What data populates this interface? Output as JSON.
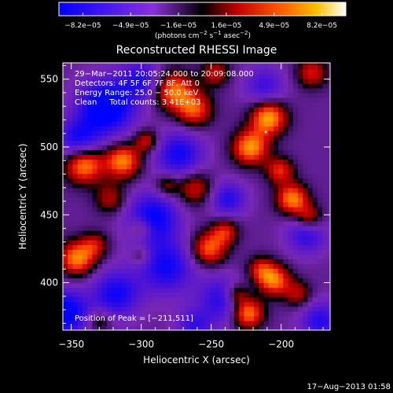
{
  "chart_data": {
    "type": "heatmap",
    "title": "Reconstructed RHESSI Image",
    "xlabel": "Heliocentric X (arcsec)",
    "ylabel": "Heliocentric Y (arcsec)",
    "xlim": [
      -356,
      -165
    ],
    "ylim": [
      365,
      562
    ],
    "xticks": [
      -350,
      -300,
      -250,
      -200
    ],
    "xtick_labels": [
      "−350",
      "−300",
      "−250",
      "−200"
    ],
    "yticks": [
      400,
      450,
      500,
      550
    ],
    "ytick_labels": [
      "400",
      "450",
      "500",
      "550"
    ],
    "colorbar": {
      "min": -8.2e-05,
      "max": 8.2e-05,
      "tick_labels": [
        "−8.2e−05",
        "−4.9e−05",
        "−1.6e−05",
        "1.6e−05",
        "4.9e−05",
        "8.2e−05"
      ],
      "unit_main": "(photons cm",
      "unit_exp1": "−2",
      "unit_mid": " s",
      "unit_exp2": "−1",
      "unit_end": " asec",
      "unit_exp3": "−2",
      "unit_close": ")"
    },
    "annotations": {
      "time": "29−Mar−2011 20:05:24.000 to 20:09:08.000",
      "detectors": "Detectors: 4F 5F 6F 7F 8F, Att 0",
      "energy": "Energy Range: 25.0 − 50.0 keV",
      "clean": "Clean     Total counts: 3.41E+03",
      "peak_label": "Position of Peak = [−211,511]"
    },
    "peak": {
      "x": -211,
      "y": 511
    },
    "blobs": [
      {
        "x": -325,
        "y": 530,
        "r": 14,
        "v": -1.0
      },
      {
        "x": -300,
        "y": 550,
        "r": 10,
        "v": -0.6
      },
      {
        "x": -345,
        "y": 505,
        "r": 11,
        "v": -0.7
      },
      {
        "x": -273,
        "y": 495,
        "r": 12,
        "v": -0.7
      },
      {
        "x": -238,
        "y": 462,
        "r": 9,
        "v": -0.6
      },
      {
        "x": -292,
        "y": 448,
        "r": 13,
        "v": -0.8
      },
      {
        "x": -282,
        "y": 412,
        "r": 14,
        "v": -0.7
      },
      {
        "x": -318,
        "y": 392,
        "r": 12,
        "v": -0.7
      },
      {
        "x": -242,
        "y": 388,
        "r": 12,
        "v": -0.6
      },
      {
        "x": -182,
        "y": 436,
        "r": 10,
        "v": -0.6
      },
      {
        "x": -355,
        "y": 378,
        "r": 12,
        "v": -0.9
      },
      {
        "x": -212,
        "y": 545,
        "r": 10,
        "v": -0.5
      },
      {
        "x": -172,
        "y": 372,
        "r": 10,
        "v": -0.6
      },
      {
        "x": -262,
        "y": 368,
        "r": 9,
        "v": -0.5
      },
      {
        "x": -209,
        "y": 522,
        "r": 9,
        "v": 0.95
      },
      {
        "x": -222,
        "y": 500,
        "r": 9,
        "v": 0.9
      },
      {
        "x": -201,
        "y": 483,
        "r": 7,
        "v": 0.6
      },
      {
        "x": -277,
        "y": 542,
        "r": 10,
        "v": 0.8
      },
      {
        "x": -262,
        "y": 528,
        "r": 9,
        "v": 0.7
      },
      {
        "x": -341,
        "y": 488,
        "r": 10,
        "v": 0.95
      },
      {
        "x": -313,
        "y": 490,
        "r": 9,
        "v": 0.85
      },
      {
        "x": -296,
        "y": 505,
        "r": 6,
        "v": 0.55
      },
      {
        "x": -262,
        "y": 470,
        "r": 9,
        "v": 0.55
      },
      {
        "x": -322,
        "y": 462,
        "r": 8,
        "v": 0.45
      },
      {
        "x": -282,
        "y": 472,
        "r": 6,
        "v": 0.45
      },
      {
        "x": -346,
        "y": 418,
        "r": 9,
        "v": 0.85
      },
      {
        "x": -333,
        "y": 428,
        "r": 7,
        "v": 0.45
      },
      {
        "x": -252,
        "y": 425,
        "r": 9,
        "v": 0.75
      },
      {
        "x": -240,
        "y": 438,
        "r": 7,
        "v": 0.55
      },
      {
        "x": -192,
        "y": 462,
        "r": 8,
        "v": 0.85
      },
      {
        "x": -180,
        "y": 448,
        "r": 7,
        "v": 0.6
      },
      {
        "x": -205,
        "y": 402,
        "r": 8,
        "v": 0.8
      },
      {
        "x": -215,
        "y": 410,
        "r": 7,
        "v": 0.5
      },
      {
        "x": -188,
        "y": 392,
        "r": 7,
        "v": 0.45
      },
      {
        "x": -224,
        "y": 378,
        "r": 8,
        "v": 0.9
      },
      {
        "x": -232,
        "y": 392,
        "r": 6,
        "v": 0.55
      },
      {
        "x": -300,
        "y": 440,
        "r": 6,
        "v": 0.5
      },
      {
        "x": -178,
        "y": 555,
        "r": 8,
        "v": 0.55
      },
      {
        "x": -247,
        "y": 555,
        "r": 7,
        "v": 0.5
      },
      {
        "x": -330,
        "y": 372,
        "r": 6,
        "v": 0.4
      },
      {
        "x": -300,
        "y": 420,
        "r": 5,
        "v": 0.35
      }
    ]
  },
  "footer": {
    "date": "17−Aug−2013 01:58"
  }
}
